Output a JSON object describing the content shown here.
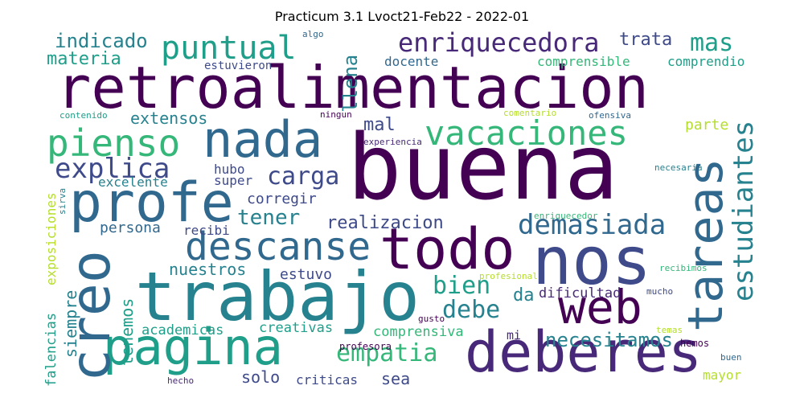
{
  "title": "Practicum 3.1 Lvoct21-Feb22 - 2022-01",
  "words": {
    "buena": "buena",
    "retroalimentacion": "retroalimentacion",
    "trabajo": "trabajo",
    "nos": "nos",
    "todo": "todo",
    "pagina": "pagina",
    "deberes": "deberes",
    "tareas": "tareas",
    "profe": "profe",
    "creo": "creo",
    "web": "web",
    "nada": "nada",
    "vacaciones": "vacaciones",
    "pienso": "pienso",
    "descanse": "descanse",
    "enriquecedora": "enriquecedora",
    "puntual": "puntual",
    "estudiantes": "estudiantes",
    "demasiada": "demasiada",
    "explica": "explica",
    "carga": "carga",
    "empatia": "empatia",
    "mas": "mas",
    "indicado": "indicado",
    "materia": "materia",
    "trata": "trata",
    "llena": "llena",
    "tener": "tener",
    "realizacion": "realizacion",
    "bien": "bien",
    "debe": "debe",
    "necesitamos": "necesitamos",
    "siempre": "siempre",
    "tenemos": "tenemos",
    "mal": "mal",
    "extensos": "extensos",
    "comprensible": "comprensible",
    "comprendio": "comprendio",
    "docente": "docente",
    "estuvieron": "estuvieron",
    "parte": "parte",
    "corregir": "corregir",
    "persona": "persona",
    "recibi": "recibi",
    "nuestros": "nuestros",
    "estuvo": "estuvo",
    "academicas": "academicas",
    "creativas": "creativas",
    "comprensiva": "comprensiva",
    "dificultad": "dificultad",
    "da": "da",
    "mi": "mi",
    "solo": "solo",
    "criticas": "criticas",
    "sea": "sea",
    "excelente": "excelente",
    "super": "super",
    "hubo": "hubo",
    "falencias": "falencias",
    "exposiciones": "exposiciones",
    "mayor": "mayor",
    "profesora": "profesora",
    "gusto": "gusto",
    "profesional": "profesional",
    "mucho": "mucho",
    "recibimos": "recibimos",
    "temas": "temas",
    "hemos": "hemos",
    "buen": "buen",
    "hecho": "hecho",
    "sirva": "sirva",
    "algo": "algo",
    "contenido": "contenido",
    "ningun": "ningun",
    "comentario": "comentario",
    "ofensiva": "ofensiva",
    "experiencia": "experiencia",
    "necesaria": "necesaria",
    "enriquecedor": "enriquecedor"
  },
  "colors": {
    "dark_purple": "#440154",
    "purple": "#482878",
    "indigo": "#3e4a89",
    "blue": "#31688e",
    "teal_blue": "#26828e",
    "teal": "#1f9e89",
    "green": "#35b779",
    "light_green": "#6ece58",
    "lime": "#b5de2b",
    "yellow": "#fde725"
  }
}
